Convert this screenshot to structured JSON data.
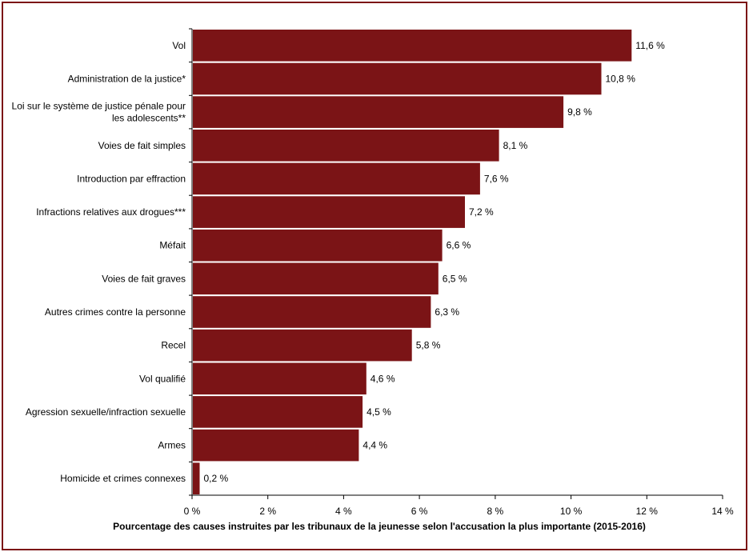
{
  "colors": {
    "bar": "#7b1416",
    "frame": "#7b1416",
    "axis": "#000000"
  },
  "chart_data": {
    "type": "bar",
    "orientation": "horizontal",
    "categories": [
      "Vol",
      "Administration de la justice*",
      "Loi sur le système de justice pénale pour les adolescents**",
      "Voies de fait simples",
      "Introduction par effraction",
      "Infractions relatives aux drogues***",
      "Méfait",
      "Voies de fait graves",
      "Autres crimes contre la personne",
      "Recel",
      "Vol qualifié",
      "Agression sexuelle/infraction sexuelle",
      "Armes",
      "Homicide et crimes connexes"
    ],
    "category_label_lines": [
      [
        "Vol"
      ],
      [
        "Administration de la justice*"
      ],
      [
        "Loi sur le système de justice pénale pour",
        "les adolescents**"
      ],
      [
        "Voies de fait simples"
      ],
      [
        "Introduction par effraction"
      ],
      [
        "Infractions relatives aux drogues***"
      ],
      [
        "Méfait"
      ],
      [
        "Voies de fait graves"
      ],
      [
        "Autres crimes contre la personne"
      ],
      [
        "Recel"
      ],
      [
        "Vol qualifié"
      ],
      [
        "Agression sexuelle/infraction sexuelle"
      ],
      [
        "Armes"
      ],
      [
        "Homicide et crimes connexes"
      ]
    ],
    "values": [
      11.6,
      10.8,
      9.8,
      8.1,
      7.6,
      7.2,
      6.6,
      6.5,
      6.3,
      5.8,
      4.6,
      4.5,
      4.4,
      0.2
    ],
    "value_labels": [
      "11,6 %",
      "10,8 %",
      "9,8 %",
      "8,1 %",
      "7,6 %",
      "7,2 %",
      "6,6 %",
      "6,5 %",
      "6,3 %",
      "5,8 %",
      "4,6 %",
      "4,5 %",
      "4,4 %",
      "0,2 %"
    ],
    "xlim": [
      0,
      14
    ],
    "xticks": [
      0,
      2,
      4,
      6,
      8,
      10,
      12,
      14
    ],
    "xtick_labels": [
      "0 %",
      "2 %",
      "4 %",
      "6 %",
      "8 %",
      "10 %",
      "12 %",
      "14 %"
    ],
    "xlabel": "Pourcentage des causes instruites par les tribunaux de la jeunesse selon l'accusation la plus importante (2015-2016)",
    "ylabel": "",
    "title": "",
    "grid": false,
    "legend": "none"
  }
}
